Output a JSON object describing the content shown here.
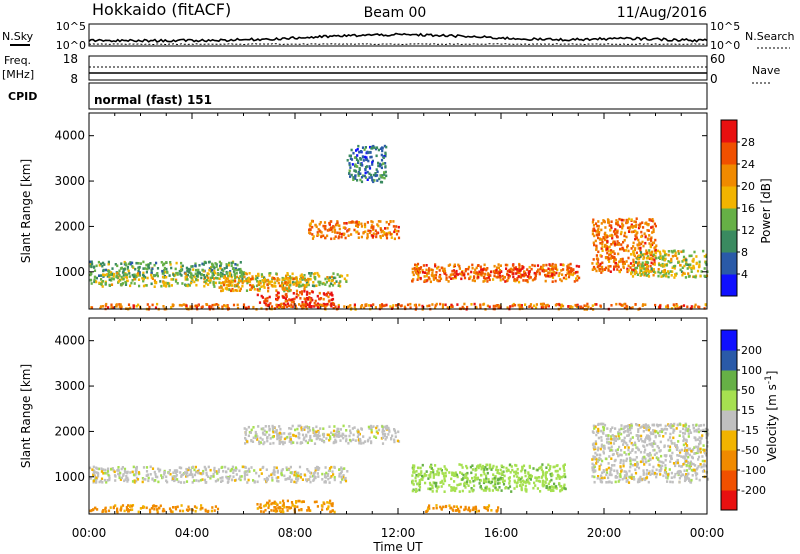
{
  "header": {
    "station": "Hokkaido (fitACF)",
    "beam": "Beam 00",
    "date": "11/Aug/2016"
  },
  "params": {
    "nsky_label": "N.Sky",
    "nsky_top": "10^5",
    "nsky_bottom": "10^0",
    "nsearch_label": "N.Search",
    "nsearch_top": "10^5",
    "nsearch_bottom": "10^0",
    "freq_label_1": "Freq.",
    "freq_label_2": "[MHz]",
    "freq_top": "18",
    "freq_bottom": "8",
    "nave_label": "Nave",
    "nave_top": "60",
    "nave_bottom": "0",
    "cpid_label": "CPID",
    "cpid_value": "normal (fast) 151"
  },
  "axes": {
    "ylabel": "Slant Range [km]",
    "xlabel": "Time UT",
    "yticks": [
      "1000",
      "2000",
      "3000",
      "4000"
    ],
    "xticks": [
      "00:00",
      "04:00",
      "08:00",
      "12:00",
      "16:00",
      "20:00",
      "00:00"
    ]
  },
  "colors": {
    "power": [
      "#1010ff",
      "#2a5aa8",
      "#3a8a60",
      "#66b046",
      "#f2b400",
      "#f08a00",
      "#f05000",
      "#e81010"
    ],
    "velocity": [
      "#e81010",
      "#f05000",
      "#f08a00",
      "#f2b400",
      "#c0c0c0",
      "#a6e050",
      "#66b046",
      "#2a5aa8",
      "#1010ff"
    ]
  },
  "chart_data": [
    {
      "type": "heatmap",
      "title": "Power",
      "colorbar_label": "Power [dB]",
      "colorbar_ticks": [
        "4",
        "8",
        "12",
        "16",
        "20",
        "24",
        "28"
      ],
      "x_range_hours": [
        0,
        24
      ],
      "y_range_km": [
        180,
        4500
      ],
      "regions": [
        {
          "t": [
            0,
            6
          ],
          "r": [
            900,
            1250
          ],
          "p": 12
        },
        {
          "t": [
            0,
            10
          ],
          "r": [
            700,
            1000
          ],
          "p": 16
        },
        {
          "t": [
            5,
            8.5
          ],
          "r": [
            600,
            900
          ],
          "p": 20
        },
        {
          "t": [
            6.5,
            9.5
          ],
          "r": [
            250,
            600
          ],
          "p": 28
        },
        {
          "t": [
            0,
            24
          ],
          "r": [
            200,
            320
          ],
          "p": 24
        },
        {
          "t": [
            8.5,
            12
          ],
          "r": [
            1750,
            2150
          ],
          "p": 24
        },
        {
          "t": [
            12.5,
            19
          ],
          "r": [
            800,
            1200
          ],
          "p": 24
        },
        {
          "t": [
            15,
            18
          ],
          "r": [
            900,
            1100
          ],
          "p": 28
        },
        {
          "t": [
            19.5,
            22
          ],
          "r": [
            1000,
            2200
          ],
          "p": 24
        },
        {
          "t": [
            21,
            24
          ],
          "r": [
            900,
            1500
          ],
          "p": 16
        },
        {
          "t": [
            10,
            11.5
          ],
          "r": [
            3000,
            3800
          ],
          "p": 8
        }
      ]
    },
    {
      "type": "heatmap",
      "title": "Velocity",
      "colorbar_label": "Velocity [m s^-1]",
      "colorbar_ticks": [
        "-200",
        "-100",
        "-50",
        "-15",
        "15",
        "50",
        "100",
        "200"
      ],
      "x_range_hours": [
        0,
        24
      ],
      "y_range_km": [
        180,
        4500
      ],
      "regions": [
        {
          "t": [
            0,
            10
          ],
          "r": [
            900,
            1250
          ],
          "v": 0
        },
        {
          "t": [
            6,
            12
          ],
          "r": [
            1750,
            2150
          ],
          "v": 0
        },
        {
          "t": [
            0,
            5
          ],
          "r": [
            250,
            400
          ],
          "v": -60
        },
        {
          "t": [
            6.5,
            9.5
          ],
          "r": [
            250,
            500
          ],
          "v": -60
        },
        {
          "t": [
            12.5,
            18.5
          ],
          "r": [
            700,
            1300
          ],
          "v": 40
        },
        {
          "t": [
            19.5,
            24
          ],
          "r": [
            900,
            2200
          ],
          "v": 0
        },
        {
          "t": [
            13,
            16
          ],
          "r": [
            250,
            400
          ],
          "v": -60
        }
      ]
    }
  ]
}
